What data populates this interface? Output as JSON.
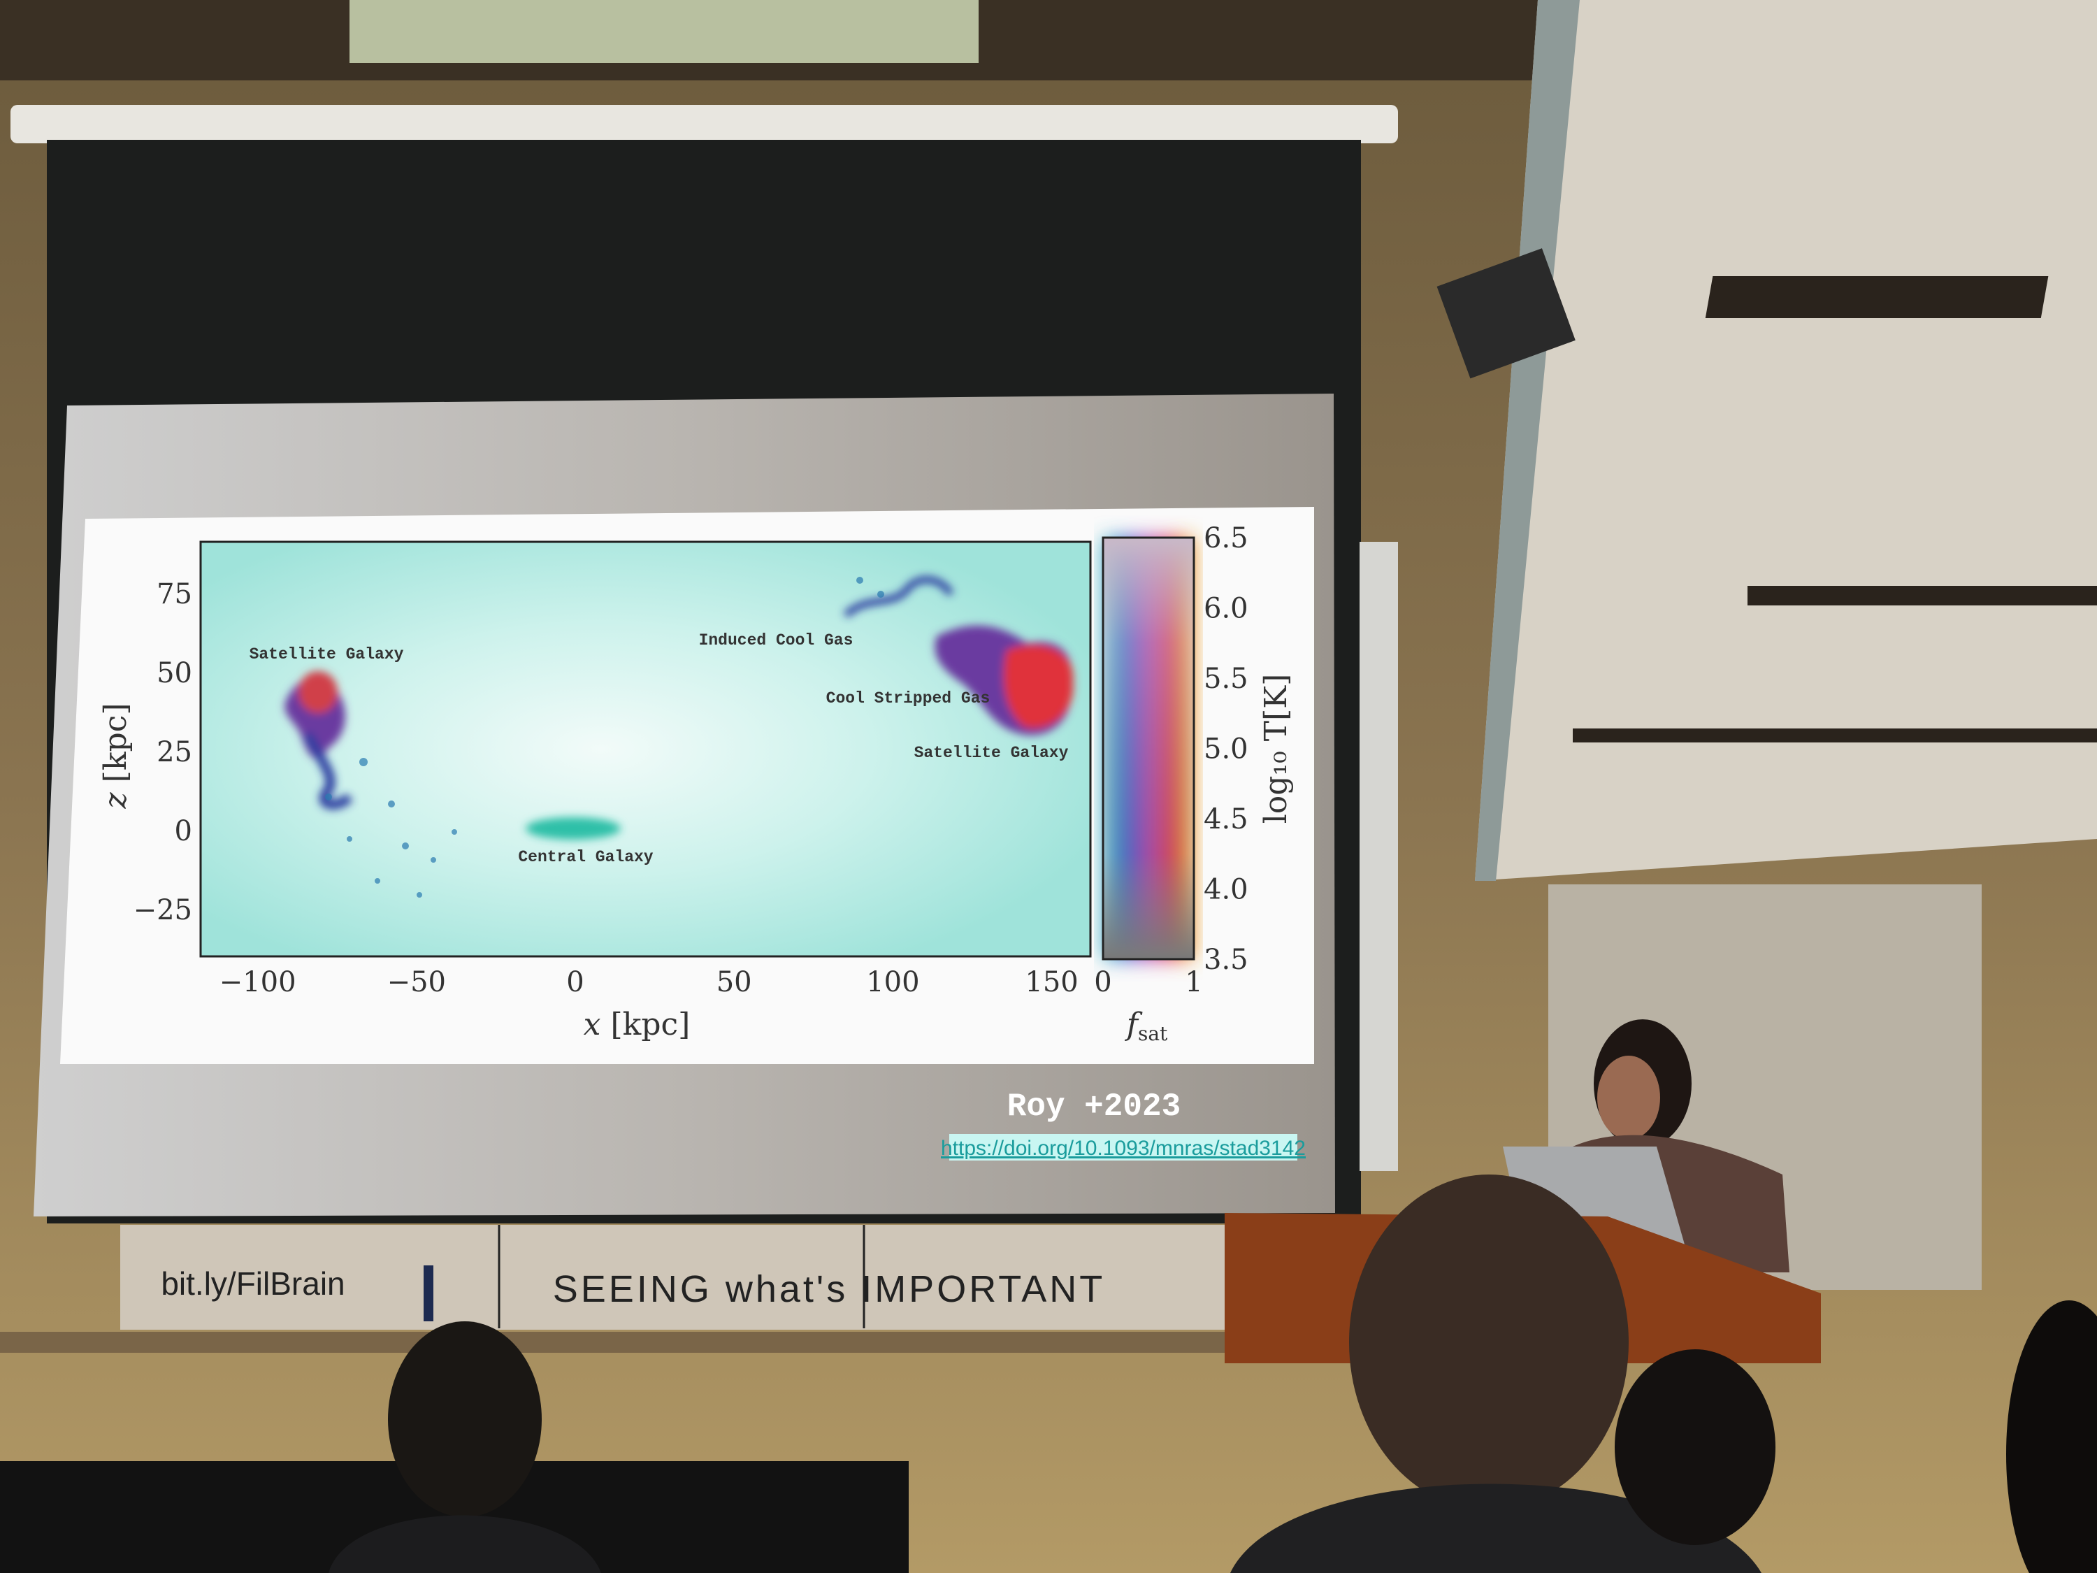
{
  "slide": {
    "plot": {
      "xlabel_var": "x",
      "xlabel_unit": "[kpc]",
      "ylabel_var": "z",
      "ylabel_unit": "[kpc]",
      "x_ticks": [
        "−100",
        "−50",
        "0",
        "50",
        "100",
        "150"
      ],
      "x_tick_values": [
        -100,
        -50,
        0,
        50,
        100,
        150
      ],
      "z_ticks": [
        "75",
        "50",
        "25",
        "0",
        "−25"
      ],
      "z_tick_values": [
        75,
        50,
        25,
        0,
        -25
      ],
      "annotations": {
        "satellite_left": "Satellite Galaxy",
        "induced_cool_gas": "Induced Cool Gas",
        "cool_stripped_gas": "Cool Stripped Gas",
        "satellite_right": "Satellite Galaxy",
        "central_galaxy": "Central Galaxy"
      }
    },
    "colorbar": {
      "label": "log₁₀ T[K]",
      "ticks": [
        "6.5",
        "6.0",
        "5.5",
        "5.0",
        "4.5",
        "4.0",
        "3.5"
      ],
      "xlabel": "f",
      "xlabel_sub": "sat",
      "x_ticks": [
        "0",
        "1"
      ]
    },
    "citation": "Roy +2023",
    "doi_link": "https://doi.org/10.1093/mnras/stad3142"
  },
  "whiteboard": {
    "left_text": "bit.ly/FilBrain",
    "middle_text": "SEEING what's IMPORTANT"
  },
  "colors": {
    "background_cyan": "#bfeee8",
    "hot_gas_red": "#e0303a",
    "cool_gas_blue": "#2a3ca0",
    "link_highlight": "#c9f6f2"
  }
}
